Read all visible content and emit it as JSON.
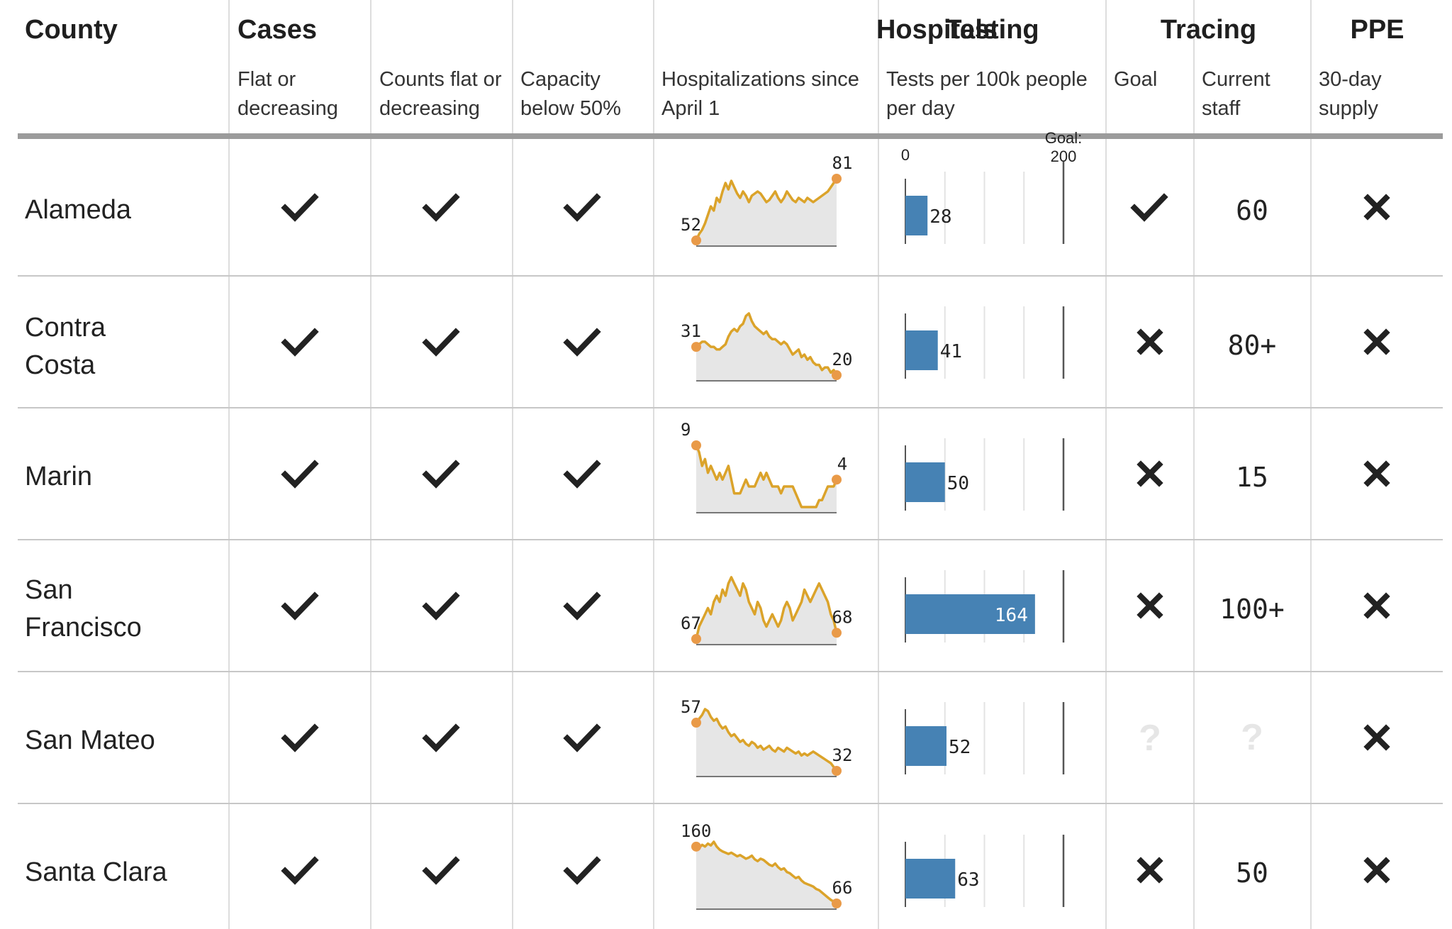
{
  "header": {
    "county": "County",
    "cases": "Cases",
    "hospitals": "Hospitals",
    "testing": "Testing",
    "tracing": "Tracing",
    "ppe": "PPE",
    "sub_cases": "Flat or decreasing",
    "sub_counts": "Counts flat or decreasing",
    "sub_capacity": "Capacity below 50%",
    "sub_hosp": "Hospitalizations since April 1",
    "sub_tests": "Tests per 100k people per day",
    "sub_goal": "Goal",
    "sub_staff": "Current staff",
    "sub_ppe": "30-day supply"
  },
  "testing_axis": {
    "zero_label": "0",
    "goal_label": "Goal:",
    "goal_value_label": "200",
    "goal": 200
  },
  "colors": {
    "bar": "#4682b4",
    "sparkline": "#dba32a",
    "dot": "#e99a48",
    "area": "#e6e6e6",
    "unknown": "#e6e6e6"
  },
  "icons": {
    "check": "check-icon",
    "cross": "cross-icon",
    "unknown": "question-icon"
  },
  "rows": [
    {
      "county": "Alameda",
      "cases": "check",
      "counts": "check",
      "capacity": "check",
      "hosp_start": "52",
      "hosp_end": "81",
      "tests": 28,
      "tests_label": "28",
      "tracing_goal": "check",
      "staff": "60",
      "ppe": "cross"
    },
    {
      "county": "Contra Costa",
      "cases": "check",
      "counts": "check",
      "capacity": "check",
      "hosp_start": "31",
      "hosp_end": "20",
      "tests": 41,
      "tests_label": "41",
      "tracing_goal": "cross",
      "staff": "80+",
      "ppe": "cross"
    },
    {
      "county": "Marin",
      "cases": "check",
      "counts": "check",
      "capacity": "check",
      "hosp_start": "9",
      "hosp_end": "4",
      "tests": 50,
      "tests_label": "50",
      "tracing_goal": "cross",
      "staff": "15",
      "ppe": "cross"
    },
    {
      "county": "San Francisco",
      "cases": "check",
      "counts": "check",
      "capacity": "check",
      "hosp_start": "67",
      "hosp_end": "68",
      "tests": 164,
      "tests_label": "164",
      "tracing_goal": "cross",
      "staff": "100+",
      "ppe": "cross"
    },
    {
      "county": "San Mateo",
      "cases": "check",
      "counts": "check",
      "capacity": "check",
      "hosp_start": "57",
      "hosp_end": "32",
      "tests": 52,
      "tests_label": "52",
      "tracing_goal": "unknown",
      "staff": "?",
      "ppe": "cross"
    },
    {
      "county": "Santa Clara",
      "cases": "check",
      "counts": "check",
      "capacity": "check",
      "hosp_start": "160",
      "hosp_end": "66",
      "tests": 63,
      "tests_label": "63",
      "tracing_goal": "cross",
      "staff": "50",
      "ppe": "cross"
    }
  ],
  "chart_data": {
    "type": "table",
    "columns": [
      "County",
      "Cases: Flat or decreasing",
      "Hospitals: Counts flat or decreasing",
      "Hospitals: Capacity below 50%",
      "Hospitalizations since April 1",
      "Testing: Tests per 100k people per day",
      "Tracing: Goal",
      "Tracing: Current staff",
      "PPE: 30-day supply"
    ],
    "hospitalizations": [
      {
        "county": "Alameda",
        "start": 52,
        "end": 81,
        "series": [
          52,
          55,
          57,
          60,
          64,
          68,
          66,
          72,
          70,
          75,
          79,
          76,
          80,
          77,
          74,
          72,
          75,
          73,
          70,
          73,
          74,
          75,
          74,
          72,
          70,
          71,
          73,
          75,
          72,
          70,
          72,
          75,
          73,
          71,
          70,
          72,
          71,
          70,
          72,
          71,
          70,
          71,
          72,
          73,
          74,
          75,
          77,
          79,
          81
        ]
      },
      {
        "county": "Contra Costa",
        "start": 31,
        "end": 20,
        "series": [
          31,
          32,
          33,
          33,
          32,
          31,
          31,
          30,
          30,
          31,
          32,
          35,
          37,
          38,
          37,
          39,
          40,
          43,
          44,
          41,
          39,
          38,
          37,
          36,
          37,
          35,
          34,
          34,
          33,
          32,
          33,
          32,
          30,
          28,
          29,
          30,
          27,
          28,
          26,
          27,
          25,
          24,
          24,
          22,
          23,
          23,
          21,
          22,
          20
        ]
      },
      {
        "county": "Marin",
        "start": 9,
        "end": 4,
        "series": [
          9,
          8,
          6,
          7,
          5,
          6,
          5,
          4,
          5,
          4,
          5,
          6,
          4,
          2,
          2,
          2,
          3,
          4,
          3,
          3,
          3,
          4,
          5,
          4,
          5,
          4,
          3,
          3,
          3,
          2,
          3,
          3,
          3,
          3,
          2,
          1,
          0,
          0,
          0,
          0,
          0,
          0,
          1,
          1,
          2,
          3,
          3,
          3,
          4
        ]
      },
      {
        "county": "San Francisco",
        "start": 67,
        "end": 68,
        "series": [
          67,
          69,
          70,
          71,
          72,
          71,
          73,
          74,
          73,
          75,
          74,
          76,
          77,
          76,
          75,
          74,
          76,
          75,
          73,
          72,
          71,
          73,
          72,
          70,
          69,
          70,
          71,
          70,
          69,
          70,
          72,
          73,
          72,
          70,
          71,
          72,
          73,
          75,
          74,
          73,
          74,
          75,
          76,
          75,
          74,
          73,
          71,
          70,
          68
        ]
      },
      {
        "county": "San Mateo",
        "start": 57,
        "end": 32,
        "series": [
          57,
          59,
          61,
          64,
          63,
          60,
          58,
          59,
          56,
          54,
          55,
          52,
          50,
          51,
          49,
          47,
          48,
          46,
          45,
          47,
          46,
          44,
          45,
          43,
          44,
          45,
          43,
          42,
          44,
          43,
          42,
          44,
          43,
          42,
          41,
          42,
          40,
          41,
          40,
          41,
          42,
          41,
          40,
          39,
          38,
          37,
          36,
          34,
          32
        ]
      },
      {
        "county": "Santa Clara",
        "start": 160,
        "end": 66,
        "series": [
          160,
          158,
          163,
          160,
          165,
          162,
          168,
          160,
          155,
          152,
          150,
          148,
          150,
          147,
          144,
          146,
          143,
          140,
          142,
          145,
          139,
          136,
          140,
          138,
          134,
          130,
          128,
          132,
          126,
          122,
          124,
          118,
          116,
          112,
          108,
          110,
          104,
          100,
          98,
          96,
          94,
          90,
          88,
          84,
          80,
          76,
          72,
          69,
          66
        ]
      }
    ],
    "tests_per_100k": {
      "categories": [
        "Alameda",
        "Contra Costa",
        "Marin",
        "San Francisco",
        "San Mateo",
        "Santa Clara"
      ],
      "values": [
        28,
        41,
        50,
        164,
        52,
        63
      ],
      "goal": 200,
      "xlim": [
        0,
        200
      ]
    }
  }
}
